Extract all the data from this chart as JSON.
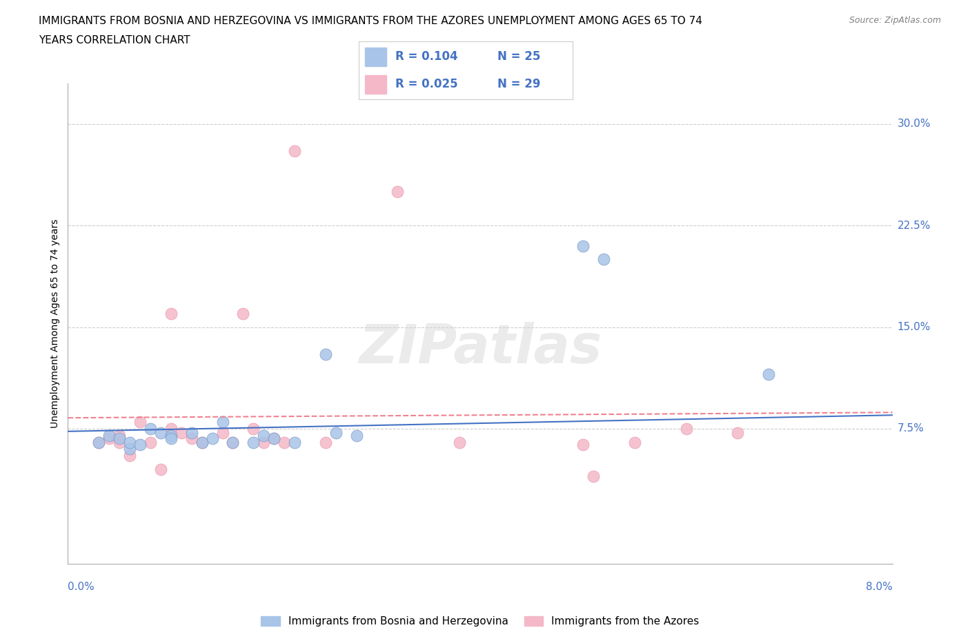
{
  "title_line1": "IMMIGRANTS FROM BOSNIA AND HERZEGOVINA VS IMMIGRANTS FROM THE AZORES UNEMPLOYMENT AMONG AGES 65 TO 74",
  "title_line2": "YEARS CORRELATION CHART",
  "source": "Source: ZipAtlas.com",
  "ylabel": "Unemployment Among Ages 65 to 74 years",
  "y_tick_labels": [
    "7.5%",
    "15.0%",
    "22.5%",
    "30.0%"
  ],
  "y_tick_values": [
    0.075,
    0.15,
    0.225,
    0.3
  ],
  "x_range": [
    0.0,
    0.08
  ],
  "y_range": [
    -0.025,
    0.33
  ],
  "legend_blue_R": "R = 0.104",
  "legend_blue_N": "N = 25",
  "legend_pink_R": "R = 0.025",
  "legend_pink_N": "N = 29",
  "blue_color": "#a8c4e8",
  "pink_color": "#f4b8c8",
  "blue_line_color": "#4472c4",
  "pink_line_color": "#f08090",
  "watermark": "ZIPatlas",
  "blue_scatter_x": [
    0.003,
    0.004,
    0.005,
    0.006,
    0.006,
    0.007,
    0.008,
    0.009,
    0.01,
    0.01,
    0.012,
    0.013,
    0.014,
    0.015,
    0.016,
    0.018,
    0.019,
    0.02,
    0.022,
    0.025,
    0.026,
    0.028,
    0.05,
    0.052,
    0.068
  ],
  "blue_scatter_y": [
    0.065,
    0.07,
    0.068,
    0.06,
    0.065,
    0.063,
    0.075,
    0.072,
    0.07,
    0.068,
    0.072,
    0.065,
    0.068,
    0.08,
    0.065,
    0.065,
    0.07,
    0.068,
    0.065,
    0.13,
    0.072,
    0.07,
    0.21,
    0.2,
    0.115
  ],
  "pink_scatter_x": [
    0.003,
    0.004,
    0.005,
    0.005,
    0.006,
    0.007,
    0.008,
    0.009,
    0.01,
    0.01,
    0.011,
    0.012,
    0.013,
    0.015,
    0.016,
    0.017,
    0.018,
    0.019,
    0.02,
    0.021,
    0.022,
    0.025,
    0.032,
    0.038,
    0.05,
    0.051,
    0.055,
    0.06,
    0.065
  ],
  "pink_scatter_y": [
    0.065,
    0.068,
    0.065,
    0.07,
    0.055,
    0.08,
    0.065,
    0.045,
    0.075,
    0.16,
    0.072,
    0.068,
    0.065,
    0.072,
    0.065,
    0.16,
    0.075,
    0.065,
    0.068,
    0.065,
    0.28,
    0.065,
    0.25,
    0.065,
    0.063,
    0.04,
    0.065,
    0.075,
    0.072
  ],
  "blue_trend_x": [
    0.0,
    0.08
  ],
  "blue_trend_y": [
    0.073,
    0.085
  ],
  "pink_trend_x": [
    0.0,
    0.08
  ],
  "pink_trend_y": [
    0.083,
    0.087
  ],
  "title_fontsize": 11,
  "axis_label_color": "#4472c4",
  "background_color": "#ffffff"
}
